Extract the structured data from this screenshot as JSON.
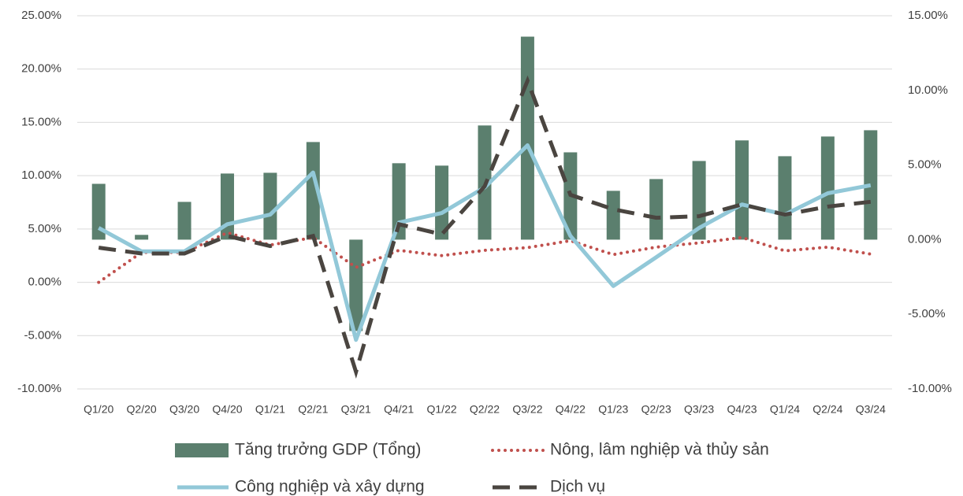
{
  "chart_data": {
    "type": "bar",
    "categories": [
      "Q1/20",
      "Q2/20",
      "Q3/20",
      "Q4/20",
      "Q1/21",
      "Q2/21",
      "Q3/21",
      "Q4/21",
      "Q1/22",
      "Q2/22",
      "Q3/22",
      "Q4/22",
      "Q1/23",
      "Q2/23",
      "Q3/23",
      "Q4/23",
      "Q1/24",
      "Q2/24",
      "Q3/24"
    ],
    "series": [
      {
        "name": "Tăng trưởng GDP (Tổng)",
        "type": "bar",
        "axis": "y2",
        "color": "#5b7f6e",
        "values": [
          3.74,
          0.32,
          2.53,
          4.43,
          4.48,
          6.54,
          -6.12,
          5.12,
          4.96,
          7.65,
          13.6,
          5.85,
          3.27,
          4.06,
          5.27,
          6.65,
          5.59,
          6.91,
          7.33
        ]
      },
      {
        "name": "Nông, lâm nghiệp và thủy sản",
        "type": "line",
        "line_style": "dotted",
        "color": "#c0504d",
        "values": [
          0.0,
          2.8,
          2.8,
          4.65,
          3.5,
          4.2,
          1.4,
          3.0,
          2.5,
          3.0,
          3.25,
          3.9,
          2.6,
          3.3,
          3.7,
          4.2,
          2.95,
          3.3,
          2.65
        ]
      },
      {
        "name": "Công nghiệp và xây dựng",
        "type": "line",
        "line_style": "solid",
        "color": "#92c8d8",
        "values": [
          5.1,
          2.9,
          2.9,
          5.45,
          6.35,
          10.3,
          -5.4,
          5.6,
          6.5,
          8.9,
          12.85,
          4.35,
          -0.35,
          2.35,
          5.1,
          7.3,
          6.35,
          8.35,
          9.1
        ]
      },
      {
        "name": "Dịch vụ",
        "type": "line",
        "line_style": "dashed",
        "color": "#4a4540",
        "values": [
          3.25,
          2.7,
          2.7,
          4.35,
          3.4,
          4.35,
          -8.4,
          5.45,
          4.5,
          9.0,
          18.9,
          8.2,
          6.85,
          6.05,
          6.2,
          7.3,
          6.35,
          7.1,
          7.55
        ]
      }
    ],
    "ylim": [
      -10,
      25
    ],
    "yticks": [
      {
        "value": -10,
        "label": "-10.00%"
      },
      {
        "value": -5,
        "label": "-5.00%"
      },
      {
        "value": 0,
        "label": "0.00%"
      },
      {
        "value": 5,
        "label": "5.00%"
      },
      {
        "value": 10,
        "label": "10.00%"
      },
      {
        "value": 15,
        "label": "15.00%"
      },
      {
        "value": 20,
        "label": "20.00%"
      },
      {
        "value": 25,
        "label": "25.00%"
      }
    ],
    "y2lim": [
      -10,
      15
    ],
    "y2ticks": [
      {
        "value": -10,
        "label": "-10.00%"
      },
      {
        "value": -5,
        "label": "-5.00%"
      },
      {
        "value": 0,
        "label": "0.00%"
      },
      {
        "value": 5,
        "label": "5.00%"
      },
      {
        "value": 10,
        "label": "10.00%"
      },
      {
        "value": 15,
        "label": "15.00%"
      }
    ],
    "grid": true,
    "legend": "bottom"
  }
}
